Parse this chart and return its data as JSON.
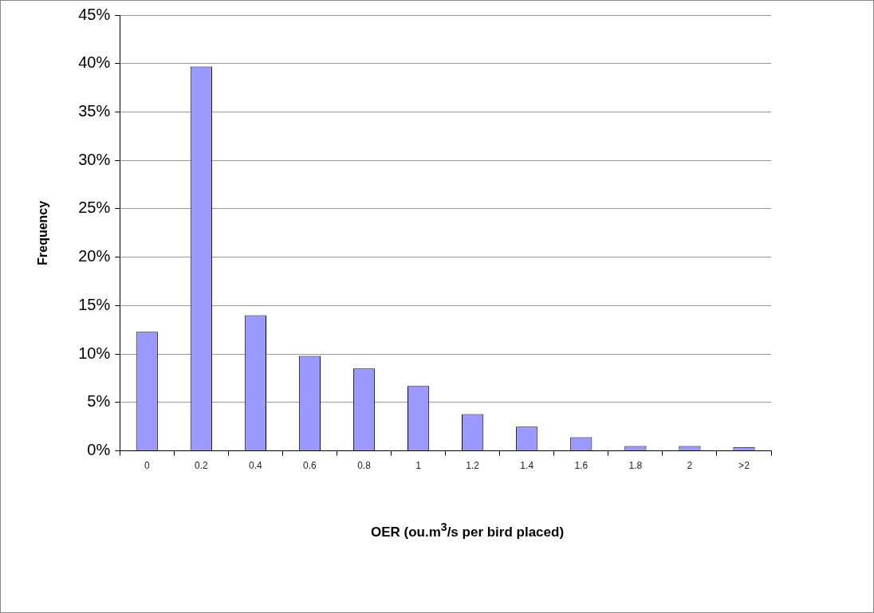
{
  "chart_data": {
    "type": "bar",
    "xlabel": "OER (ou.m$^{3}$/s per bird placed)",
    "ylabel": "Frequency",
    "categories": [
      "0",
      "0.2",
      "0.4",
      "0.6",
      "0.8",
      "1",
      "1.2",
      "1.4",
      "1.6",
      "1.8",
      "2",
      ">2"
    ],
    "values": [
      12.3,
      39.7,
      14.0,
      9.8,
      8.5,
      6.7,
      3.8,
      2.5,
      1.4,
      0.5,
      0.5,
      0.4
    ],
    "color": "#9999ff",
    "ylim": [
      0,
      45
    ],
    "yticks": [
      {
        "value": 0,
        "label": "0%"
      },
      {
        "value": 5,
        "label": "5%"
      },
      {
        "value": 10,
        "label": "10%"
      },
      {
        "value": 15,
        "label": "15%"
      },
      {
        "value": 20,
        "label": "20%"
      },
      {
        "value": 25,
        "label": "25%"
      },
      {
        "value": 30,
        "label": "30%"
      },
      {
        "value": 35,
        "label": "35%"
      },
      {
        "value": 40,
        "label": "40%"
      },
      {
        "value": 45,
        "label": "45%"
      }
    ],
    "grid": "y",
    "legend": false
  }
}
